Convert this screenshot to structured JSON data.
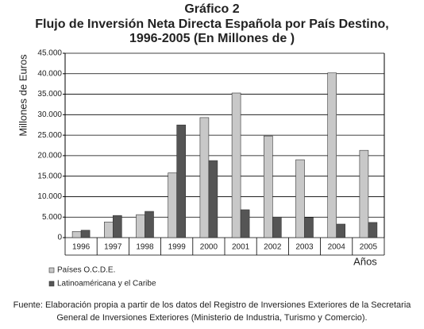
{
  "chart_data": {
    "type": "bar",
    "title": [
      "Gráfico 2",
      "Flujo de Inversión Neta Directa Española por País Destino,",
      "1996-2005  (En Millones de  )"
    ],
    "y_label": "Millones de Euros",
    "x_label": "Años",
    "categories": [
      "1996",
      "1997",
      "1998",
      "1999",
      "2000",
      "2001",
      "2002",
      "2003",
      "2004",
      "2005"
    ],
    "series": [
      {
        "name": "Países O.C.D.E.",
        "color": "#c8c8c8",
        "values": [
          1500,
          3800,
          5600,
          15800,
          29300,
          35300,
          24800,
          19000,
          40200,
          21300
        ]
      },
      {
        "name": "Latinoaméricana y el Caribe",
        "color": "#555555",
        "values": [
          1800,
          5400,
          6400,
          27500,
          18800,
          6800,
          5000,
          4900,
          3300,
          3700
        ]
      }
    ],
    "ylim": [
      0,
      45000
    ],
    "yticks": [
      0,
      {
        "value": 5000,
        "label": "5.000"
      },
      {
        "value": 10000,
        "label": "10.000"
      },
      {
        "value": 15000,
        "label": "15.000"
      },
      {
        "value": 20000,
        "label": "20.000"
      },
      {
        "value": 25000,
        "label": "25.000"
      },
      {
        "value": 30000,
        "label": "30.000"
      },
      {
        "value": 35000,
        "label": "35.000"
      },
      {
        "value": 40000,
        "label": "40.000"
      },
      {
        "value": 45000,
        "label": "45.000"
      }
    ],
    "grid": true,
    "source": [
      "Fuente: Elaboración propia a partir de los datos del Registro de Inversiones Exteriores de la Secretaria",
      "General de Inversiones Exteriores (Ministerio de Industria, Turismo y Comercio)."
    ]
  }
}
